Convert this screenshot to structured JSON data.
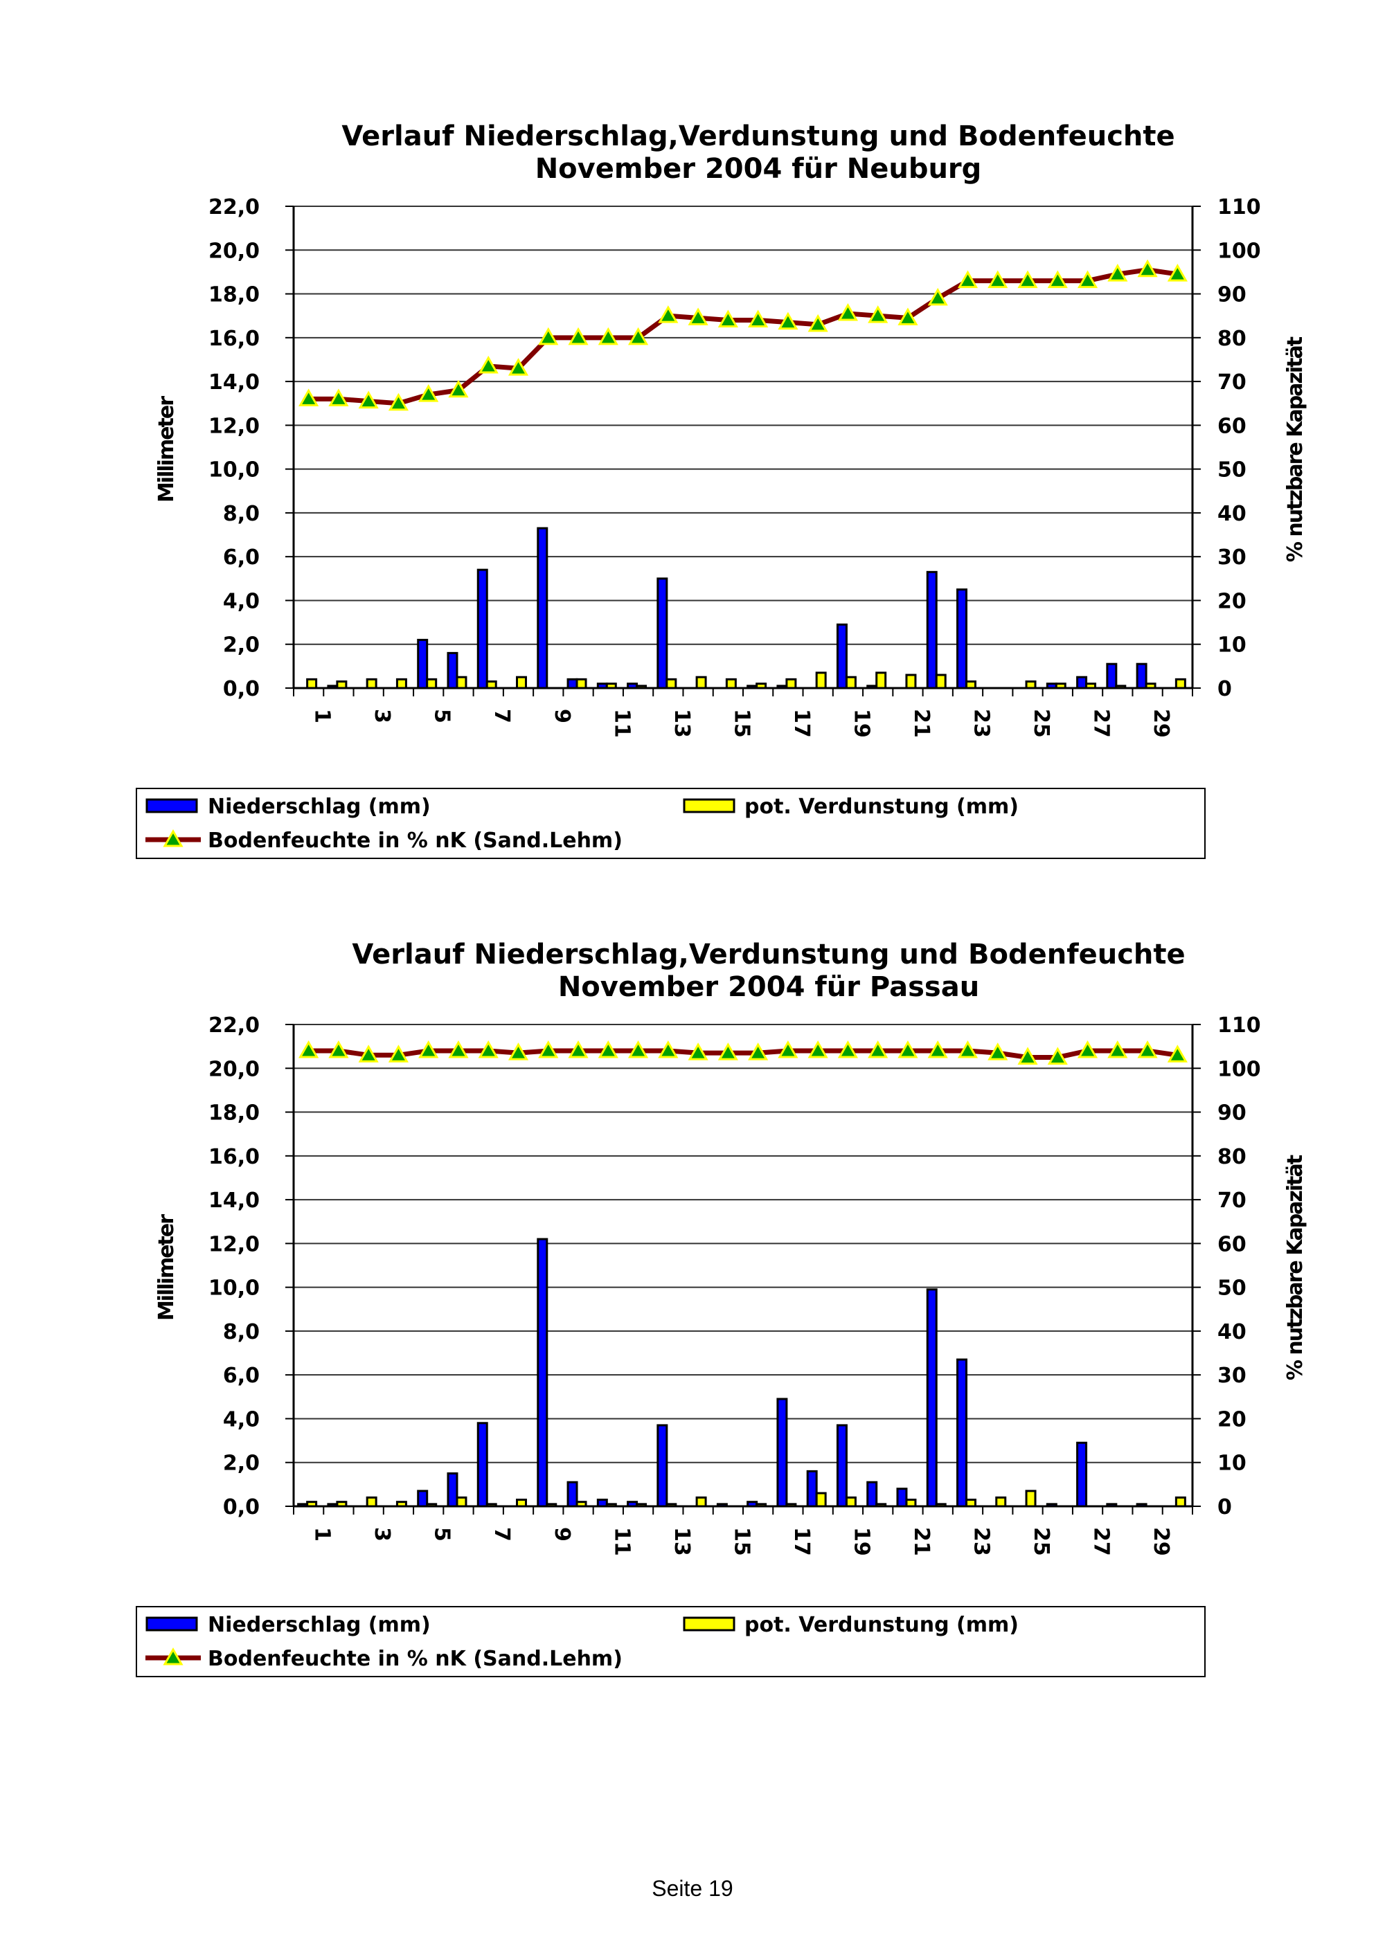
{
  "footer": {
    "page_label": "Seite 19"
  },
  "colors": {
    "precip": "#0000FF",
    "evap": "#FFFF00",
    "soil_line": "#800000",
    "soil_marker": "#FFFF00",
    "soil_marker_fill": "#00A000"
  },
  "chart_data": [
    {
      "type": "bar",
      "title": "Verlauf Niederschlag,Verdunstung und Bodenfeuchte",
      "subtitle": "November 2004 für Neuburg",
      "ylabel": "Millimeter",
      "y2label": "% nutzbare Kapazität",
      "ylim": [
        0,
        22
      ],
      "y2lim": [
        0,
        110
      ],
      "yticks": [
        "0,0",
        "2,0",
        "4,0",
        "6,0",
        "8,0",
        "10,0",
        "12,0",
        "14,0",
        "16,0",
        "18,0",
        "20,0",
        "22,0"
      ],
      "y2ticks": [
        "0",
        "10",
        "20",
        "30",
        "40",
        "50",
        "60",
        "70",
        "80",
        "90",
        "100",
        "110"
      ],
      "xtick_labels": [
        "1",
        "3",
        "5",
        "7",
        "9",
        "11",
        "13",
        "15",
        "17",
        "19",
        "21",
        "23",
        "25",
        "27",
        "29"
      ],
      "grid": true,
      "legend": [
        "Niederschlag (mm)",
        "pot. Verdunstung (mm)",
        "Bodenfeuchte in % nK (Sand.Lehm)"
      ],
      "x": [
        1,
        2,
        3,
        4,
        5,
        6,
        7,
        8,
        9,
        10,
        11,
        12,
        13,
        14,
        15,
        16,
        17,
        18,
        19,
        20,
        21,
        22,
        23,
        24,
        25,
        26,
        27,
        28,
        29,
        30
      ],
      "series": [
        {
          "name": "Niederschlag (mm)",
          "kind": "bar",
          "axis": "left",
          "values": [
            0,
            0.1,
            0,
            0,
            2.2,
            1.6,
            5.4,
            0,
            7.3,
            0.4,
            0.2,
            0.2,
            5.0,
            0,
            0,
            0.1,
            0.1,
            0,
            2.9,
            0.1,
            0,
            5.3,
            4.5,
            0,
            0,
            0.2,
            0.5,
            1.1,
            1.1,
            0
          ]
        },
        {
          "name": "pot. Verdunstung (mm)",
          "kind": "bar",
          "axis": "left",
          "values": [
            0.4,
            0.3,
            0.4,
            0.4,
            0.4,
            0.5,
            0.3,
            0.5,
            0,
            0.4,
            0.2,
            0.1,
            0.4,
            0.5,
            0.4,
            0.2,
            0.4,
            0.7,
            0.5,
            0.7,
            0.6,
            0.6,
            0.3,
            0,
            0.3,
            0.2,
            0.2,
            0.1,
            0.2,
            0.4
          ]
        },
        {
          "name": "Bodenfeuchte in % nK (Sand.Lehm)",
          "kind": "line",
          "axis": "right",
          "values": [
            66,
            66,
            65.5,
            65,
            67,
            68,
            73.5,
            73,
            80,
            80,
            80,
            80,
            85,
            84.5,
            84,
            84,
            83.5,
            83,
            85.5,
            85,
            84.5,
            89,
            93,
            93,
            93,
            93,
            93,
            94.5,
            95.5,
            94.5
          ]
        }
      ]
    },
    {
      "type": "bar",
      "title": "Verlauf Niederschlag,Verdunstung und Bodenfeuchte",
      "subtitle": "November 2004 für Passau",
      "ylabel": "Millimeter",
      "y2label": "% nutzbare Kapazität",
      "ylim": [
        0,
        22
      ],
      "y2lim": [
        0,
        110
      ],
      "yticks": [
        "0,0",
        "2,0",
        "4,0",
        "6,0",
        "8,0",
        "10,0",
        "12,0",
        "14,0",
        "16,0",
        "18,0",
        "20,0",
        "22,0"
      ],
      "y2ticks": [
        "0",
        "10",
        "20",
        "30",
        "40",
        "50",
        "60",
        "70",
        "80",
        "90",
        "100",
        "110"
      ],
      "xtick_labels": [
        "1",
        "3",
        "5",
        "7",
        "9",
        "11",
        "13",
        "15",
        "17",
        "19",
        "21",
        "23",
        "25",
        "27",
        "29"
      ],
      "grid": true,
      "legend": [
        "Niederschlag (mm)",
        "pot. Verdunstung (mm)",
        "Bodenfeuchte in % nK (Sand.Lehm)"
      ],
      "x": [
        1,
        2,
        3,
        4,
        5,
        6,
        7,
        8,
        9,
        10,
        11,
        12,
        13,
        14,
        15,
        16,
        17,
        18,
        19,
        20,
        21,
        22,
        23,
        24,
        25,
        26,
        27,
        28,
        29,
        30
      ],
      "series": [
        {
          "name": "Niederschlag (mm)",
          "kind": "bar",
          "axis": "left",
          "values": [
            0.1,
            0.1,
            0,
            0,
            0.7,
            1.5,
            3.8,
            0,
            12.2,
            1.1,
            0.3,
            0.2,
            3.7,
            0,
            0.1,
            0.2,
            4.9,
            1.6,
            3.7,
            1.1,
            0.8,
            9.9,
            6.7,
            0,
            0,
            0.1,
            2.9,
            0.1,
            0.1,
            0
          ]
        },
        {
          "name": "pot. Verdunstung (mm)",
          "kind": "bar",
          "axis": "left",
          "values": [
            0.2,
            0.2,
            0.4,
            0.2,
            0.1,
            0.4,
            0.1,
            0.3,
            0.1,
            0.2,
            0.1,
            0.1,
            0.1,
            0.4,
            0,
            0.1,
            0.1,
            0.6,
            0.4,
            0.1,
            0.3,
            0.1,
            0.3,
            0.4,
            0.7,
            0,
            0,
            0,
            0,
            0.4
          ]
        },
        {
          "name": "Bodenfeuchte in % nK (Sand.Lehm)",
          "kind": "line",
          "axis": "right",
          "values": [
            104,
            104,
            103,
            103,
            104,
            104,
            104,
            103.5,
            104,
            104,
            104,
            104,
            104,
            103.5,
            103.5,
            103.5,
            104,
            104,
            104,
            104,
            104,
            104,
            104,
            103.5,
            102.5,
            102.5,
            104,
            104,
            104,
            103
          ]
        }
      ]
    }
  ]
}
